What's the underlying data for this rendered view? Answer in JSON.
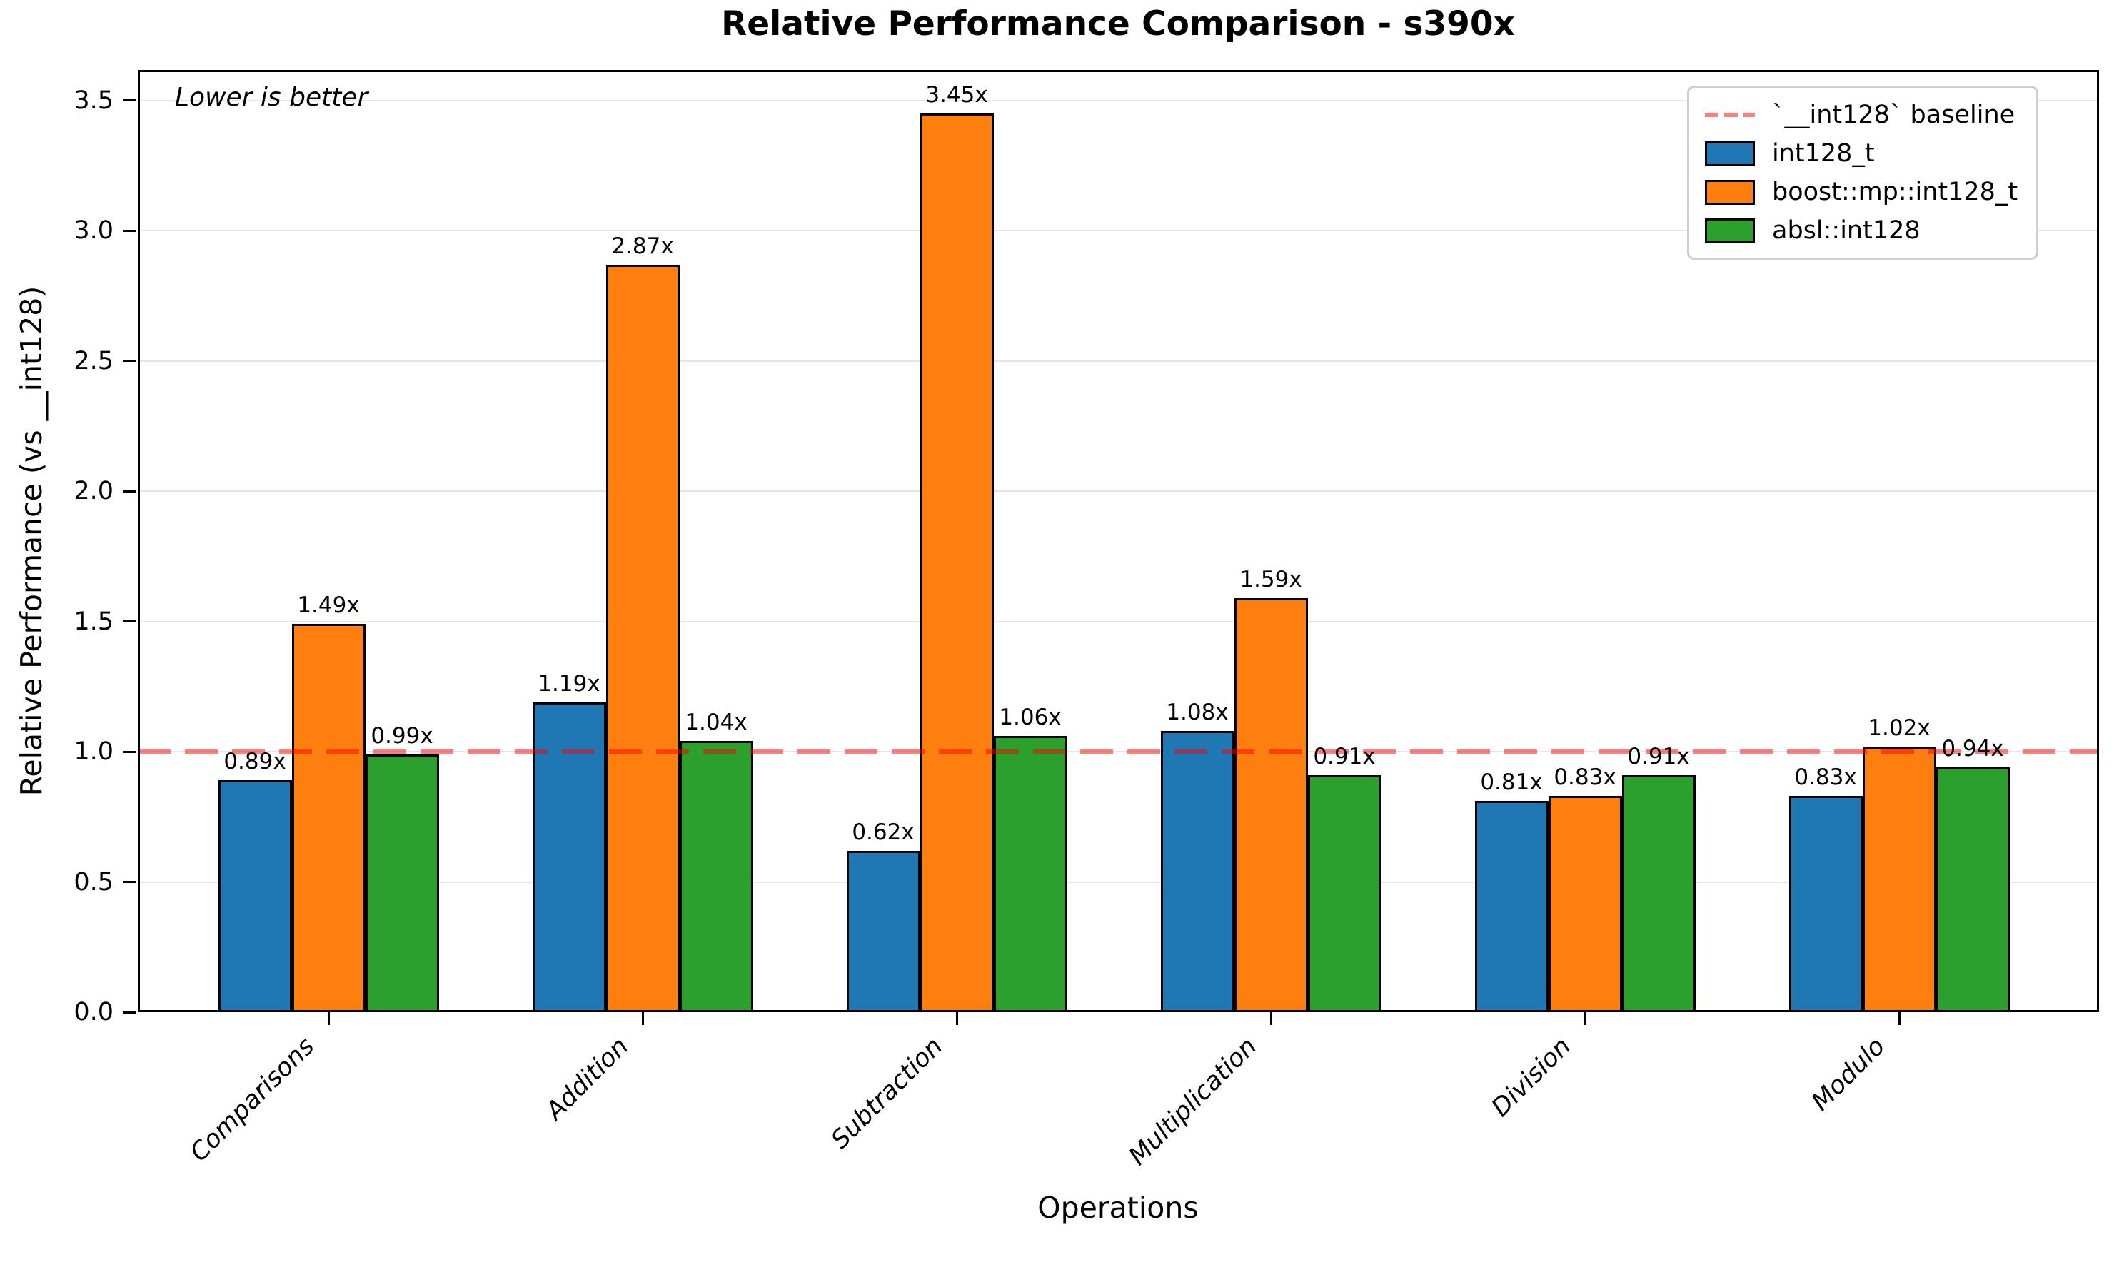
{
  "chart_data": {
    "type": "bar",
    "title": "Relative Performance Comparison - s390x",
    "xlabel": "Operations",
    "ylabel": "Relative Performance (vs __int128)",
    "annotation": "Lower is better",
    "categories": [
      "Comparisons",
      "Addition",
      "Subtraction",
      "Multiplication",
      "Division",
      "Modulo"
    ],
    "series": [
      {
        "name": "int128_t",
        "color": "#1f77b4",
        "values": [
          0.89,
          1.19,
          0.62,
          1.08,
          0.81,
          0.83
        ]
      },
      {
        "name": "boost::mp::int128_t",
        "color": "#ff7f0e",
        "values": [
          1.49,
          2.87,
          3.45,
          1.59,
          0.83,
          1.02
        ]
      },
      {
        "name": "absl::int128",
        "color": "#2ca02c",
        "values": [
          0.99,
          1.04,
          1.06,
          0.91,
          0.91,
          0.94
        ]
      }
    ],
    "bar_labels": [
      [
        "0.89x",
        "1.19x",
        "0.62x",
        "1.08x",
        "0.81x",
        "0.83x"
      ],
      [
        "1.49x",
        "2.87x",
        "3.45x",
        "1.59x",
        "0.83x",
        "1.02x"
      ],
      [
        "0.99x",
        "1.04x",
        "1.06x",
        "0.91x",
        "0.91x",
        "0.94x"
      ]
    ],
    "baseline": {
      "value": 1.0,
      "legend_label": "`__int128` baseline",
      "color": "#ff0000",
      "alpha": 0.5
    },
    "yticks": [
      0.0,
      0.5,
      1.0,
      1.5,
      2.0,
      2.5,
      3.0,
      3.5
    ],
    "ylim": [
      0,
      3.617
    ],
    "grid": true,
    "legend_position": "upper right",
    "value_suffix": "x"
  }
}
